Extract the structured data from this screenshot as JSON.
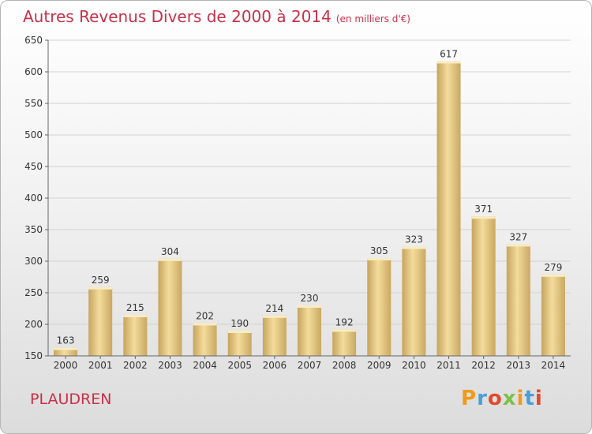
{
  "title": "Autres Revenus Divers de 2000 à 2014",
  "subtitle": "(en milliers d'€)",
  "commune": "PLAUDREN",
  "logo": "Proxiti",
  "colors": {
    "title": "#c8304a",
    "bar_light": "#f4dc9c",
    "bar_dark": "#c6a45e"
  },
  "chart_data": {
    "type": "bar",
    "categories": [
      "2000",
      "2001",
      "2002",
      "2003",
      "2004",
      "2005",
      "2006",
      "2007",
      "2008",
      "2009",
      "2010",
      "2011",
      "2012",
      "2013",
      "2014"
    ],
    "values": [
      163,
      259,
      215,
      304,
      202,
      190,
      214,
      230,
      192,
      305,
      323,
      617,
      371,
      327,
      279
    ],
    "ylim": [
      150,
      650
    ],
    "yticks": [
      150,
      200,
      250,
      300,
      350,
      400,
      450,
      500,
      550,
      600,
      650
    ],
    "grid": true
  }
}
